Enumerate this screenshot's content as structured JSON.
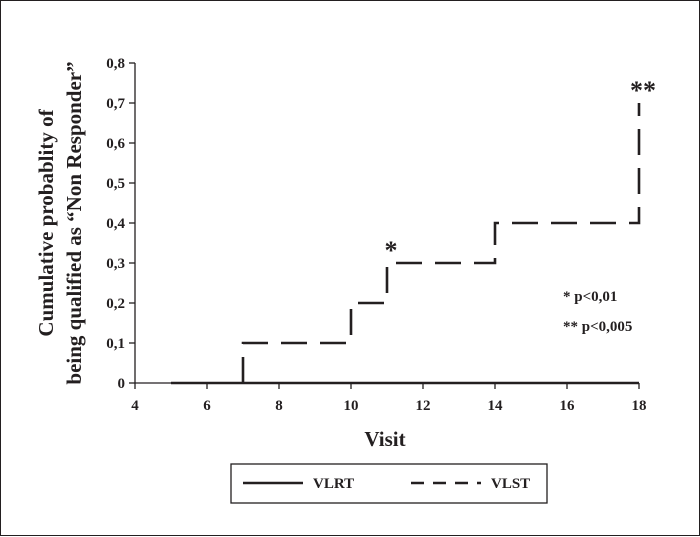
{
  "chart_data": {
    "type": "line",
    "title": "",
    "xlabel": "Visit",
    "ylabel_lines": [
      "Cumulative probablity of",
      "being qualified as “Non Responder”"
    ],
    "xlim": [
      4,
      18
    ],
    "ylim": [
      0,
      0.8
    ],
    "x_ticks": [
      4,
      6,
      8,
      10,
      12,
      14,
      16,
      18
    ],
    "x_tick_labels": [
      "4",
      "6",
      "8",
      "10",
      "12",
      "14",
      "16",
      "18"
    ],
    "y_ticks": [
      0,
      0.1,
      0.2,
      0.3,
      0.4,
      0.5,
      0.6,
      0.7,
      0.8
    ],
    "y_tick_labels": [
      "0",
      "0,1",
      "0,2",
      "0,3",
      "0,4",
      "0,5",
      "0,6",
      "0,7",
      "0,8"
    ],
    "grid": false,
    "legend_position": "bottom",
    "series": [
      {
        "name": "VLRT",
        "style": "solid",
        "color": "#231f20",
        "x": [
          5,
          18
        ],
        "y": [
          0,
          0
        ]
      },
      {
        "name": "VLST",
        "style": "dashed",
        "color": "#231f20",
        "step_x": [
          7,
          10,
          11,
          14,
          18,
          18
        ],
        "step_y": [
          0.1,
          0.2,
          0.3,
          0.4,
          0.7,
          0.7
        ],
        "start_x": 7,
        "start_y": 0
      }
    ],
    "annotations": [
      {
        "text": "*",
        "x": 11,
        "y": 0.3
      },
      {
        "text": "**",
        "x": 18,
        "y": 0.7
      }
    ],
    "notes": [
      "* p<0,01",
      "** p<0,005"
    ]
  }
}
